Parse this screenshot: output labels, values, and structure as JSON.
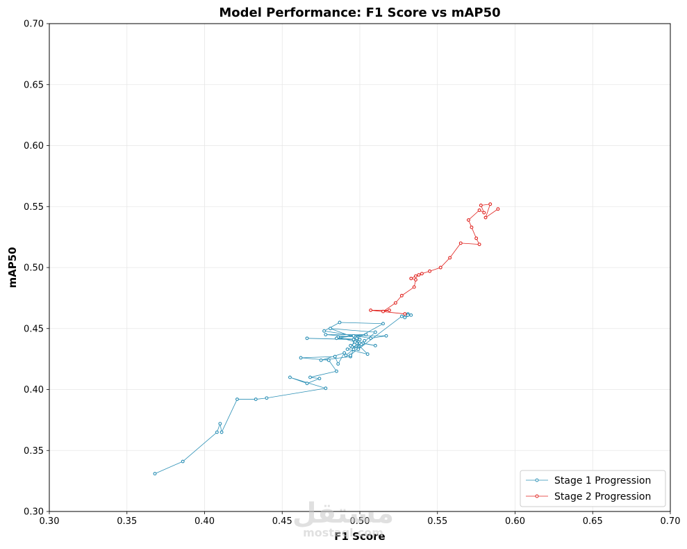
{
  "chart_data": {
    "type": "line",
    "title": "Model Performance: F1 Score vs mAP50",
    "xlabel": "F1 Score",
    "ylabel": "mAP50",
    "xlim": [
      0.3,
      0.7
    ],
    "ylim": [
      0.3,
      0.7
    ],
    "xticks": [
      "0.30",
      "0.35",
      "0.40",
      "0.45",
      "0.50",
      "0.55",
      "0.60",
      "0.65",
      "0.70"
    ],
    "yticks": [
      "0.30",
      "0.35",
      "0.40",
      "0.45",
      "0.50",
      "0.55",
      "0.60",
      "0.65",
      "0.70"
    ],
    "grid": true,
    "legend_position": "lower-right",
    "watermark": {
      "arabic": "مستقل",
      "latin": "mostaql.com"
    },
    "series": [
      {
        "name": "Stage 1 Progression",
        "color": "#2a8fb5",
        "points": [
          [
            0.368,
            0.331
          ],
          [
            0.386,
            0.341
          ],
          [
            0.408,
            0.365
          ],
          [
            0.41,
            0.372
          ],
          [
            0.411,
            0.365
          ],
          [
            0.421,
            0.392
          ],
          [
            0.433,
            0.392
          ],
          [
            0.44,
            0.393
          ],
          [
            0.478,
            0.401
          ],
          [
            0.455,
            0.41
          ],
          [
            0.466,
            0.405
          ],
          [
            0.474,
            0.409
          ],
          [
            0.468,
            0.41
          ],
          [
            0.485,
            0.415
          ],
          [
            0.48,
            0.424
          ],
          [
            0.462,
            0.426
          ],
          [
            0.484,
            0.427
          ],
          [
            0.486,
            0.421
          ],
          [
            0.49,
            0.43
          ],
          [
            0.475,
            0.424
          ],
          [
            0.494,
            0.427
          ],
          [
            0.496,
            0.433
          ],
          [
            0.498,
            0.438
          ],
          [
            0.505,
            0.429
          ],
          [
            0.492,
            0.433
          ],
          [
            0.502,
            0.438
          ],
          [
            0.51,
            0.436
          ],
          [
            0.497,
            0.439
          ],
          [
            0.499,
            0.441
          ],
          [
            0.466,
            0.442
          ],
          [
            0.496,
            0.441
          ],
          [
            0.5,
            0.438
          ],
          [
            0.486,
            0.443
          ],
          [
            0.504,
            0.445
          ],
          [
            0.478,
            0.445
          ],
          [
            0.497,
            0.443
          ],
          [
            0.495,
            0.435
          ],
          [
            0.501,
            0.437
          ],
          [
            0.51,
            0.447
          ],
          [
            0.481,
            0.45
          ],
          [
            0.498,
            0.442
          ],
          [
            0.515,
            0.454
          ],
          [
            0.487,
            0.455
          ],
          [
            0.477,
            0.448
          ],
          [
            0.507,
            0.442
          ],
          [
            0.517,
            0.444
          ],
          [
            0.496,
            0.444
          ],
          [
            0.485,
            0.442
          ],
          [
            0.5,
            0.441
          ],
          [
            0.494,
            0.436
          ],
          [
            0.499,
            0.434
          ],
          [
            0.494,
            0.428
          ],
          [
            0.491,
            0.428
          ],
          [
            0.503,
            0.44
          ],
          [
            0.499,
            0.433
          ],
          [
            0.527,
            0.46
          ],
          [
            0.531,
            0.462
          ],
          [
            0.533,
            0.461
          ],
          [
            0.529,
            0.459
          ],
          [
            0.531,
            0.461
          ]
        ]
      },
      {
        "name": "Stage 2 Progression",
        "color": "#e0201c",
        "points": [
          [
            0.529,
            0.462
          ],
          [
            0.507,
            0.465
          ],
          [
            0.519,
            0.465
          ],
          [
            0.515,
            0.464
          ],
          [
            0.523,
            0.471
          ],
          [
            0.527,
            0.477
          ],
          [
            0.535,
            0.484
          ],
          [
            0.536,
            0.49
          ],
          [
            0.533,
            0.491
          ],
          [
            0.536,
            0.493
          ],
          [
            0.538,
            0.494
          ],
          [
            0.54,
            0.495
          ],
          [
            0.545,
            0.497
          ],
          [
            0.552,
            0.5
          ],
          [
            0.558,
            0.508
          ],
          [
            0.565,
            0.52
          ],
          [
            0.577,
            0.519
          ],
          [
            0.575,
            0.524
          ],
          [
            0.572,
            0.533
          ],
          [
            0.57,
            0.539
          ],
          [
            0.577,
            0.547
          ],
          [
            0.58,
            0.545
          ],
          [
            0.578,
            0.551
          ],
          [
            0.584,
            0.552
          ],
          [
            0.581,
            0.541
          ],
          [
            0.589,
            0.548
          ]
        ]
      }
    ]
  }
}
